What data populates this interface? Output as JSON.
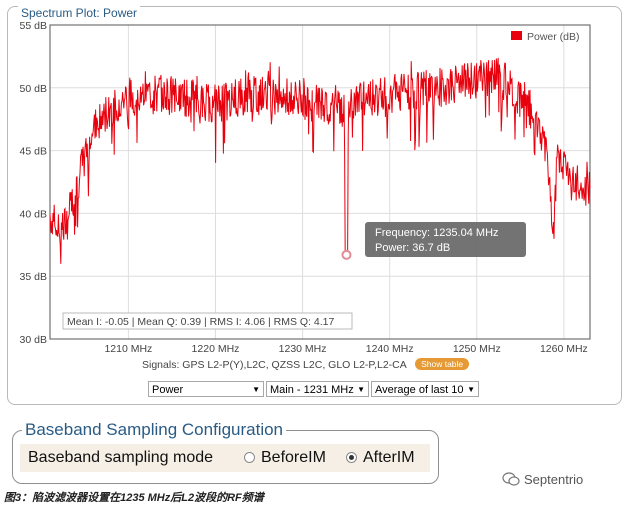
{
  "panel": {
    "title": "Spectrum Plot: Power"
  },
  "chart_data": {
    "type": "line",
    "title": "Spectrum Plot: Power",
    "xlabel": "",
    "ylabel": "",
    "xlim": [
      1201,
      1263
    ],
    "ylim": [
      30,
      55
    ],
    "x_ticks": [
      1210,
      1220,
      1230,
      1240,
      1250,
      1260
    ],
    "x_tick_labels": [
      "1210 MHz",
      "1220 MHz",
      "1230 MHz",
      "1240 MHz",
      "1250 MHz",
      "1260 MHz"
    ],
    "y_ticks": [
      30,
      35,
      40,
      45,
      50,
      55
    ],
    "y_tick_labels": [
      "30 dB",
      "35 dB",
      "40 dB",
      "45 dB",
      "50 dB",
      "55 dB"
    ],
    "grid": true,
    "legend_position": "top-right",
    "series": [
      {
        "name": "Power (dB)",
        "color": "#e8000d",
        "x": [
          1201,
          1202,
          1203,
          1204,
          1205,
          1206,
          1207,
          1208,
          1209,
          1210,
          1212,
          1214,
          1216,
          1218,
          1220,
          1222,
          1224,
          1226,
          1228,
          1230,
          1232,
          1234,
          1234.8,
          1235.04,
          1235.3,
          1236,
          1238,
          1240,
          1242,
          1244,
          1246,
          1248,
          1250,
          1252,
          1253,
          1254,
          1255,
          1256,
          1257,
          1258,
          1258.8,
          1259.3,
          1260,
          1261,
          1262
        ],
        "y": [
          40,
          38.5,
          39.5,
          42,
          44.5,
          46.5,
          47.5,
          48.5,
          49,
          49.3,
          49.5,
          49.5,
          49.3,
          49,
          48.8,
          49,
          49.4,
          49.3,
          49.2,
          49,
          48.8,
          48.6,
          48,
          36.7,
          48,
          48.8,
          49.2,
          49.5,
          49.6,
          49.8,
          50,
          50.3,
          50.7,
          51,
          50.6,
          50,
          49.2,
          48.5,
          47,
          45.5,
          38.5,
          45,
          44,
          43,
          42
        ]
      }
    ],
    "tooltip": {
      "frequency_label": "Frequency: 1235.04 MHz",
      "power_label": "Power: 36.7 dB",
      "x": 1235.04,
      "y": 36.7
    },
    "stats_label": "Mean I: -0.05 | Mean Q: 0.39 | RMS I: 4.06 | RMS Q: 4.17"
  },
  "signals": {
    "text": "Signals: GPS L2-P(Y),L2C, QZSS L2C, GLO L2-P,L2-CA",
    "show_table_label": "Show table"
  },
  "controls": {
    "plot_select": "Power",
    "source_select": "Main - 1231 MHz",
    "average_select": "Average of last 10"
  },
  "baseband": {
    "title": "Baseband Sampling Configuration",
    "label": "Baseband sampling mode",
    "option_before": "BeforeIM",
    "option_after": "AfterIM",
    "selected": "AfterIM"
  },
  "caption": "图3：陷波滤波器设置在1235 MHz后L2波段的RF频谱",
  "logo_text": "Septentrio"
}
